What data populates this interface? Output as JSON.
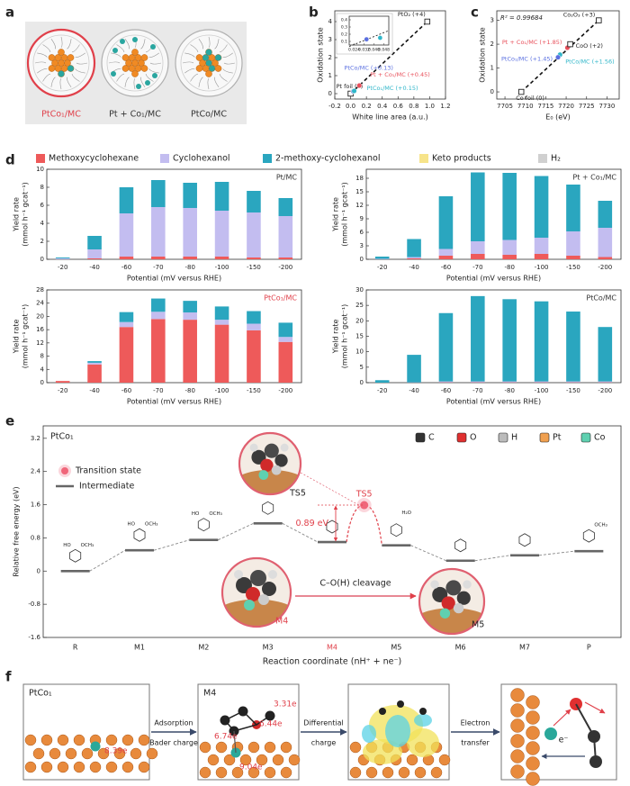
{
  "panel_letters": [
    "a",
    "b",
    "c",
    "d",
    "e",
    "f"
  ],
  "panel_a": {
    "labels": [
      "PtCo₁/MC",
      "Pt + Co₁/MC",
      "PtCo/MC"
    ],
    "label_colors": [
      "#e0404a",
      "#333333",
      "#333333"
    ]
  },
  "legend_d": [
    {
      "name": "Methoxycyclohexane",
      "color": "#ee5a5a"
    },
    {
      "name": "Cyclohexanol",
      "color": "#c3bdf0"
    },
    {
      "name": "2-methoxy-cyclohexanol",
      "color": "#2aa6bf"
    },
    {
      "name": "Keto products",
      "color": "#f7e48a"
    },
    {
      "name": "H₂",
      "color": "#d0d0d0"
    }
  ],
  "chart_data": [
    {
      "type": "scatter",
      "xlabel": "White line area (a.u.)",
      "ylabel": "Oxidation state",
      "x": [
        0,
        0.034,
        0.11,
        0.045,
        0.97
      ],
      "values": [
        0,
        0.13,
        0.45,
        0.15,
        4
      ],
      "point_labels": [
        "Pt foil (0)",
        "PtCo/MC (+0.13)",
        "Pt + Co₁/MC (+0.45)",
        "PtCo₁/MC (+0.15)",
        "PtO₂ (+4)"
      ],
      "colors": [
        "#222222",
        "#5a6fe0",
        "#e8505b",
        "#2fb6c9",
        "#222222"
      ],
      "xlim": [
        -0.2,
        1.2
      ],
      "xticks": [
        -0.2,
        {
          "value": 0,
          "label": "0.0"
        },
        0.2,
        0.4,
        0.6,
        0.8,
        {
          "value": 1,
          "label": "1.0"
        },
        1.2
      ],
      "ylim": [
        -0.3,
        4.6
      ],
      "yticks": [
        0,
        1,
        2,
        3,
        4
      ],
      "inset": {
        "xlim": [
          0.02,
          0.052
        ],
        "xticks": [
          0.024,
          0.032,
          {
            "value": 0.04,
            "label": "0.040"
          },
          0.048
        ],
        "ylim": [
          0.05,
          0.45
        ],
        "yticks": [
          0.1,
          0.2,
          0.3,
          0.4
        ]
      }
    },
    {
      "type": "scatter",
      "xlabel": "E₀ (eV)",
      "ylabel": "Oxidation state",
      "annotation": "R² = 0.99684",
      "x": [
        7709,
        7718.5,
        7720.3,
        7718,
        7721,
        7728
      ],
      "values": [
        0,
        1.56,
        1.85,
        1.45,
        2,
        3
      ],
      "point_labels": [
        "Co foil (0)",
        "PtCo/MC (+1.56)",
        "Pt + Co₁/MC (+1.85)",
        "PtCo₁/MC (+1.45)",
        "CoO (+2)",
        "Co₂O₃ (+3)"
      ],
      "colors": [
        "#222222",
        "#2fb6c9",
        "#e8505b",
        "#5a6fe0",
        "#222222",
        "#222222"
      ],
      "xlim": [
        7703,
        7733
      ],
      "xticks": [
        7705,
        7710,
        7715,
        7720,
        7725,
        7730
      ],
      "ylim": [
        -0.3,
        3.4
      ],
      "yticks": [
        0,
        1,
        2,
        3
      ]
    },
    {
      "type": "bar",
      "stacked": true,
      "title": "Pt/MC",
      "title_color": "#333333",
      "xlabel": "Potential (mV versus RHE)",
      "ylabel": [
        "Yield rate",
        "(mmol h⁻¹ gcat⁻¹)"
      ],
      "categories": [
        "-20",
        "-40",
        "-60",
        "-70",
        "-80",
        "-100",
        "-150",
        "-200"
      ],
      "series": [
        {
          "values": [
            0,
            0.1,
            0.3,
            0.3,
            0.3,
            0.3,
            0.2,
            0.2
          ]
        },
        {
          "values": [
            0.1,
            1.0,
            4.8,
            5.5,
            5.4,
            5.1,
            5.0,
            4.6
          ]
        },
        {
          "values": [
            0.1,
            1.5,
            2.9,
            3.0,
            2.8,
            3.2,
            2.4,
            2.0
          ]
        }
      ],
      "ylim": [
        0,
        10
      ],
      "yticks": [
        0,
        2,
        4,
        6,
        8,
        10
      ]
    },
    {
      "type": "bar",
      "stacked": true,
      "title": "Pt + Co₁/MC",
      "title_color": "#333333",
      "xlabel": "Potential (mV versus RHE)",
      "ylabel": [
        "Yield rate",
        "(mmol h⁻¹ gcat⁻¹)"
      ],
      "categories": [
        "-20",
        "-40",
        "-60",
        "-70",
        "-80",
        "-100",
        "-150",
        "-200"
      ],
      "series": [
        {
          "values": [
            0,
            0.2,
            0.8,
            1.2,
            1.0,
            1.2,
            0.8,
            0.5
          ]
        },
        {
          "values": [
            0.1,
            0.3,
            1.5,
            2.8,
            3.3,
            3.6,
            5.4,
            6.5
          ]
        },
        {
          "values": [
            0.5,
            4.0,
            11.7,
            15.3,
            14.9,
            13.7,
            10.4,
            6.0
          ]
        }
      ],
      "ylim": [
        0,
        20
      ],
      "yticks": [
        0,
        3,
        6,
        9,
        12,
        15,
        18
      ]
    },
    {
      "type": "bar",
      "stacked": true,
      "title": "PtCo₁/MC",
      "title_color": "#e0404a",
      "xlabel": "Potential (mV versus RHE)",
      "ylabel": [
        "Yield rate",
        "(mmol h⁻¹ gcat⁻¹)"
      ],
      "categories": [
        "-20",
        "-40",
        "-60",
        "-70",
        "-80",
        "-100",
        "-150",
        "-200"
      ],
      "series": [
        {
          "values": [
            0.5,
            5.5,
            16.8,
            19.2,
            19.0,
            17.5,
            15.8,
            12.3
          ]
        },
        {
          "values": [
            0,
            0.5,
            1.5,
            2.2,
            2.2,
            1.5,
            2.0,
            1.5
          ]
        },
        {
          "values": [
            0,
            0.5,
            3.0,
            4.0,
            3.5,
            4.0,
            3.8,
            4.3
          ]
        }
      ],
      "ylim": [
        0,
        28
      ],
      "yticks": [
        0,
        4,
        8,
        12,
        16,
        20,
        24,
        28
      ]
    },
    {
      "type": "bar",
      "stacked": true,
      "title": "PtCo/MC",
      "title_color": "#333333",
      "xlabel": "Potential (mV versus RHE)",
      "ylabel": [
        "Yield rate",
        "(mmol h⁻¹ gcat⁻¹)"
      ],
      "categories": [
        "-20",
        "-40",
        "-60",
        "-70",
        "-80",
        "-100",
        "-150",
        "-200"
      ],
      "series": [
        {
          "values": [
            0,
            0,
            0.1,
            0.1,
            0.1,
            0.1,
            0.1,
            0.1
          ]
        },
        {
          "values": [
            0,
            0.1,
            0.3,
            0.3,
            0.3,
            0.3,
            0.3,
            0.3
          ]
        },
        {
          "values": [
            0.8,
            8.9,
            22.1,
            27.6,
            26.6,
            25.9,
            22.6,
            17.6
          ]
        }
      ],
      "ylim": [
        0,
        30
      ],
      "yticks": [
        0,
        5,
        10,
        15,
        20,
        25,
        30
      ]
    },
    {
      "type": "energy",
      "title": "PtCo₁",
      "ylabel": "Relative free energy (eV)",
      "xlabel": "Reaction coordinate (nH⁺ + ne⁻)",
      "categories": [
        "R",
        "M1",
        "M2",
        "M3",
        "M4",
        "M5",
        "M6",
        "M7",
        "P"
      ],
      "values": [
        0,
        0.5,
        0.75,
        1.15,
        0.7,
        0.62,
        0.25,
        0.38,
        0.48
      ],
      "highlight": "M4",
      "highlight_color": "#e0404a",
      "ts": {
        "label": "TS5",
        "value": 1.59,
        "barrier_label": "0.89 eV"
      },
      "legend": [
        "Transition state",
        "Intermediate"
      ],
      "atoms": [
        {
          "name": "C",
          "color": "#333333"
        },
        {
          "name": "O",
          "color": "#e03030"
        },
        {
          "name": "H",
          "color": "#bbbbbb"
        },
        {
          "name": "Pt",
          "color": "#f0a050"
        },
        {
          "name": "Co",
          "color": "#5fd0b0"
        }
      ],
      "cleavage": "C–O(H) cleavage",
      "inset_labels": [
        "TS5",
        "M4",
        "M5"
      ],
      "structure_labels": [
        "HO",
        "OCH₃",
        "H₂O"
      ],
      "ylim": [
        -1.6,
        3.5
      ],
      "yticks": [
        -1.6,
        -0.8,
        0,
        0.8,
        1.6,
        2.4,
        3.2
      ]
    }
  ],
  "panel_f": {
    "boxes": [
      {
        "title": "PtCo₁",
        "charges": [
          "8.39e"
        ]
      },
      {
        "title": "M4",
        "charges": [
          "3.31e",
          "6.44e",
          "6.74e",
          "9.04e"
        ]
      }
    ],
    "steps": [
      [
        "Adsorption",
        "Bader charge"
      ],
      [
        "Differential",
        "charge"
      ],
      [
        "Electron",
        "transfer"
      ]
    ],
    "electron": "e⁻"
  }
}
